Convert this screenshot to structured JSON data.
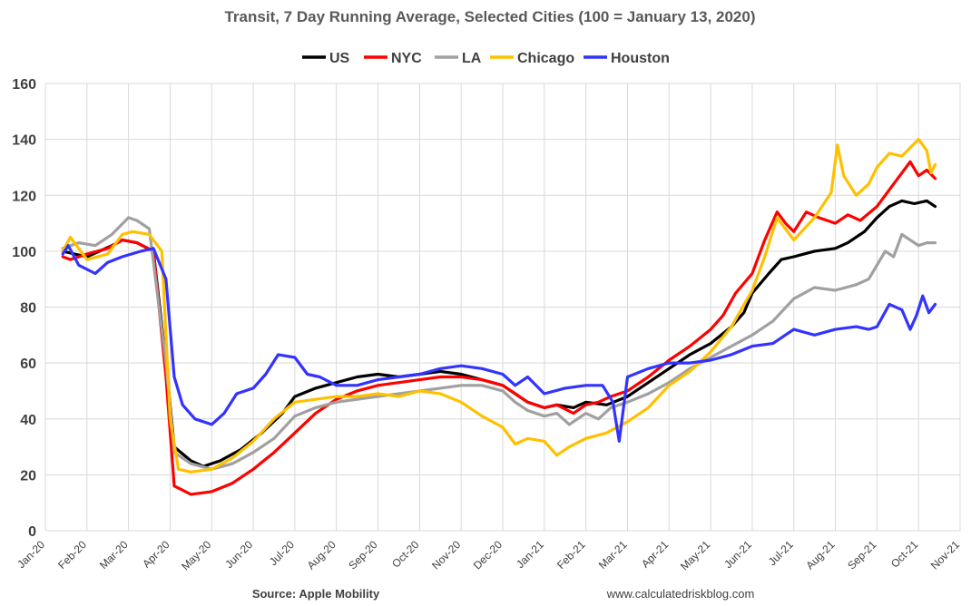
{
  "chart_data": {
    "type": "line",
    "title": "Transit, 7 Day Running Average, Selected Cities (100 = January 13, 2020)",
    "xlabel": "",
    "ylabel": "",
    "ylim": [
      0,
      160
    ],
    "yticks": [
      0,
      20,
      40,
      60,
      80,
      100,
      120,
      140,
      160
    ],
    "x_tick_labels": [
      "Jan-20",
      "Feb-20",
      "Mar-20",
      "Apr-20",
      "May-20",
      "Jun-20",
      "Jul-20",
      "Aug-20",
      "Sep-20",
      "Oct-20",
      "Nov-20",
      "Dec-20",
      "Jan-21",
      "Feb-21",
      "Mar-21",
      "Apr-21",
      "May-21",
      "Jun-21",
      "Jul-21",
      "Aug-21",
      "Sep-21",
      "Oct-21",
      "Nov-21"
    ],
    "x_units": "months since Jan 1, 2020",
    "xlim": [
      0,
      22
    ],
    "grid": true,
    "legend_position": "top-center",
    "series": [
      {
        "name": "US",
        "color": "#000000",
        "x": [
          0.42,
          0.7,
          1.0,
          1.3,
          1.6,
          1.85,
          2.2,
          2.6,
          2.9,
          3.1,
          3.5,
          3.8,
          4.2,
          4.7,
          5.2,
          5.7,
          6.0,
          6.5,
          7.0,
          7.5,
          8.0,
          8.5,
          9.0,
          9.5,
          10.0,
          10.5,
          11.0,
          11.3,
          11.6,
          12.0,
          12.3,
          12.7,
          13.0,
          13.5,
          14.0,
          14.5,
          15.0,
          15.5,
          16.0,
          16.5,
          16.8,
          17.0,
          17.4,
          17.7,
          18.0,
          18.5,
          19.0,
          19.3,
          19.7,
          20.0,
          20.3,
          20.6,
          20.9,
          21.2,
          21.4
        ],
        "values": [
          100,
          99,
          98,
          100,
          102,
          104,
          103,
          100,
          60,
          30,
          25,
          23,
          25,
          29,
          35,
          42,
          48,
          51,
          53,
          55,
          56,
          55,
          56,
          57,
          56,
          54,
          52,
          49,
          46,
          44,
          45,
          44,
          46,
          45,
          48,
          53,
          58,
          63,
          67,
          73,
          78,
          85,
          92,
          97,
          98,
          100,
          101,
          103,
          107,
          112,
          116,
          118,
          117,
          118,
          116
        ]
      },
      {
        "name": "NYC",
        "color": "#ff0000",
        "x": [
          0.42,
          0.6,
          1.0,
          1.5,
          1.85,
          2.2,
          2.6,
          2.9,
          3.1,
          3.5,
          4.0,
          4.5,
          5.0,
          5.5,
          6.0,
          6.5,
          7.0,
          7.5,
          8.0,
          8.5,
          9.0,
          9.5,
          10.0,
          10.5,
          11.0,
          11.3,
          11.6,
          12.0,
          12.3,
          12.7,
          13.0,
          13.3,
          13.6,
          14.0,
          14.5,
          15.0,
          15.5,
          16.0,
          16.3,
          16.6,
          17.0,
          17.3,
          17.6,
          17.8,
          18.0,
          18.3,
          18.6,
          19.0,
          19.3,
          19.6,
          20.0,
          20.3,
          20.6,
          20.8,
          21.0,
          21.2,
          21.4
        ],
        "values": [
          98,
          97,
          99,
          101,
          104,
          103,
          100,
          55,
          16,
          13,
          14,
          17,
          22,
          28,
          35,
          42,
          47,
          50,
          52,
          53,
          54,
          55,
          55,
          54,
          52,
          49,
          46,
          44,
          45,
          42,
          45,
          46,
          48,
          50,
          55,
          61,
          66,
          72,
          77,
          85,
          92,
          104,
          114,
          110,
          107,
          114,
          112,
          110,
          113,
          111,
          116,
          122,
          128,
          132,
          127,
          129,
          126
        ]
      },
      {
        "name": "LA",
        "color": "#a0a0a0",
        "x": [
          0.42,
          0.8,
          1.2,
          1.6,
          2.0,
          2.2,
          2.5,
          2.9,
          3.1,
          3.5,
          4.0,
          4.5,
          5.0,
          5.5,
          6.0,
          6.5,
          7.0,
          7.5,
          8.0,
          8.5,
          9.0,
          9.5,
          10.0,
          10.5,
          11.0,
          11.3,
          11.6,
          12.0,
          12.3,
          12.6,
          13.0,
          13.3,
          13.6,
          14.0,
          14.5,
          15.0,
          15.5,
          16.0,
          16.5,
          17.0,
          17.5,
          18.0,
          18.5,
          19.0,
          19.5,
          19.8,
          20.0,
          20.2,
          20.4,
          20.6,
          20.8,
          21.0,
          21.2,
          21.4
        ],
        "values": [
          101,
          103,
          102,
          106,
          112,
          111,
          108,
          60,
          28,
          24,
          22,
          24,
          28,
          33,
          41,
          44,
          46,
          47,
          48,
          49,
          50,
          51,
          52,
          52,
          50,
          46,
          43,
          41,
          42,
          38,
          42,
          40,
          44,
          46,
          49,
          53,
          58,
          62,
          66,
          70,
          75,
          83,
          87,
          86,
          88,
          90,
          95,
          100,
          98,
          106,
          104,
          102,
          103,
          103
        ]
      },
      {
        "name": "Chicago",
        "color": "#ffc000",
        "x": [
          0.42,
          0.6,
          1.0,
          1.5,
          1.85,
          2.1,
          2.5,
          2.8,
          3.0,
          3.2,
          3.5,
          4.0,
          4.5,
          5.0,
          5.5,
          6.0,
          6.5,
          7.0,
          7.5,
          8.0,
          8.5,
          9.0,
          9.5,
          10.0,
          10.5,
          11.0,
          11.3,
          11.6,
          12.0,
          12.3,
          12.6,
          13.0,
          13.5,
          14.0,
          14.5,
          15.0,
          15.5,
          16.0,
          16.5,
          17.0,
          17.3,
          17.6,
          18.0,
          18.5,
          18.9,
          19.05,
          19.2,
          19.5,
          19.8,
          20.0,
          20.3,
          20.6,
          20.8,
          21.0,
          21.2,
          21.3,
          21.4
        ],
        "values": [
          100,
          105,
          97,
          99,
          106,
          107,
          106,
          100,
          40,
          22,
          21,
          22,
          26,
          32,
          40,
          46,
          47,
          48,
          48,
          49,
          48,
          50,
          49,
          46,
          41,
          37,
          31,
          33,
          32,
          27,
          30,
          33,
          35,
          39,
          44,
          52,
          57,
          64,
          73,
          86,
          98,
          112,
          104,
          112,
          121,
          138,
          127,
          120,
          124,
          130,
          135,
          134,
          137,
          140,
          136,
          128,
          131
        ]
      },
      {
        "name": "Houston",
        "color": "#3333ff",
        "x": [
          0.42,
          0.55,
          0.8,
          1.2,
          1.5,
          1.85,
          2.3,
          2.6,
          2.9,
          3.1,
          3.3,
          3.6,
          4.0,
          4.3,
          4.6,
          5.0,
          5.3,
          5.6,
          6.0,
          6.3,
          6.6,
          7.0,
          7.5,
          8.0,
          8.5,
          9.0,
          9.5,
          10.0,
          10.5,
          11.0,
          11.3,
          11.6,
          12.0,
          12.5,
          13.0,
          13.4,
          13.65,
          13.8,
          14.0,
          14.5,
          15.0,
          15.5,
          16.0,
          16.5,
          17.0,
          17.5,
          18.0,
          18.5,
          19.0,
          19.5,
          19.8,
          20.0,
          20.3,
          20.6,
          20.8,
          20.95,
          21.1,
          21.25,
          21.4
        ],
        "values": [
          99,
          102,
          95,
          92,
          96,
          98,
          100,
          101,
          90,
          55,
          45,
          40,
          38,
          42,
          49,
          51,
          56,
          63,
          62,
          56,
          55,
          52,
          52,
          54,
          55,
          56,
          58,
          59,
          58,
          56,
          52,
          55,
          49,
          51,
          52,
          52,
          46,
          32,
          55,
          58,
          60,
          60,
          61,
          63,
          66,
          67,
          72,
          70,
          72,
          73,
          72,
          73,
          81,
          79,
          72,
          77,
          84,
          78,
          81
        ]
      }
    ]
  },
  "source_label": "Source: Apple Mobility",
  "website_label": "www.calculatedriskblog.com"
}
